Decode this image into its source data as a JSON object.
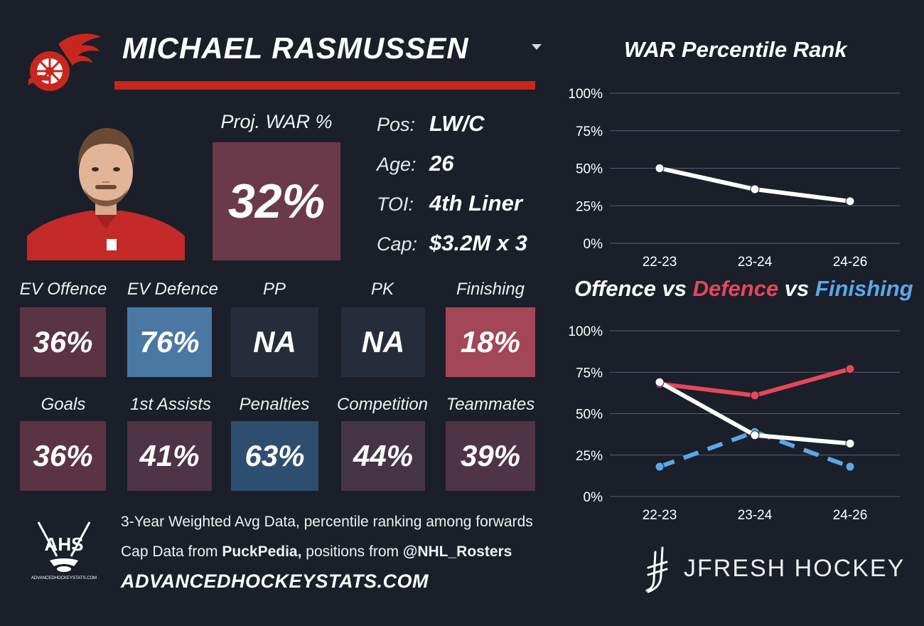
{
  "player": {
    "name": "MICHAEL RASMUSSEN",
    "team_color": "#c8271e"
  },
  "projection": {
    "label": "Proj. WAR %",
    "value": "32%"
  },
  "info": [
    {
      "label": "Pos:",
      "value": "LW/C"
    },
    {
      "label": "Age:",
      "value": "26"
    },
    {
      "label": "TOI:",
      "value": "4th Liner"
    },
    {
      "label": "Cap:",
      "value": "$3.2M x 3"
    }
  ],
  "tiles_row1": [
    {
      "label": "EV Offence",
      "value": "36%",
      "color": "#5b3444"
    },
    {
      "label": "EV Defence",
      "value": "76%",
      "color": "#4a78a3"
    },
    {
      "label": "PP",
      "value": "NA",
      "color": "#262d3a"
    },
    {
      "label": "PK",
      "value": "NA",
      "color": "#262d3a"
    },
    {
      "label": "Finishing",
      "value": "18%",
      "color": "#a24658"
    }
  ],
  "tiles_row2": [
    {
      "label": "Goals",
      "value": "36%",
      "color": "#5b3444"
    },
    {
      "label": "1st Assists",
      "value": "41%",
      "color": "#4e3444"
    },
    {
      "label": "Penalties",
      "value": "63%",
      "color": "#2e4e70"
    },
    {
      "label": "Competition",
      "value": "44%",
      "color": "#443444"
    },
    {
      "label": "Teammates",
      "value": "39%",
      "color": "#4e3444"
    }
  ],
  "footer": {
    "line1": "3-Year Weighted Avg Data, percentile ranking among forwards",
    "line2_prefix": "Cap Data from ",
    "line2_source": "PuckPedia,",
    "line2_middle": " positions from ",
    "line2_handle": "@NHL_Rosters",
    "site": "ADVANCEDHOCKEYSTATS.COM",
    "ahs_logo_text": "AHS",
    "ahs_logo_subtext": "ADVANCEDHOCKEYSTATS.COM",
    "brand": "JFRESH HOCKEY"
  },
  "chart_data": [
    {
      "type": "line",
      "title": "WAR Percentile Rank",
      "categories": [
        "22-23",
        "23-24",
        "24-26"
      ],
      "series": [
        {
          "values": [
            50,
            36,
            28
          ],
          "color": "#ffffff",
          "dashed": false
        }
      ],
      "ylim": [
        0,
        100
      ],
      "yticks": [
        "0%",
        "25%",
        "50%",
        "75%",
        "100%"
      ],
      "grid": true
    },
    {
      "type": "line",
      "title_parts": [
        {
          "text": "Offence",
          "color": "#ffffff"
        },
        {
          "text": " vs ",
          "color": "#ffffff"
        },
        {
          "text": "Defence",
          "color": "#e8465c"
        },
        {
          "text": " vs ",
          "color": "#ffffff"
        },
        {
          "text": "Finishing",
          "color": "#5aa8e8"
        }
      ],
      "categories": [
        "22-23",
        "23-24",
        "24-26"
      ],
      "series": [
        {
          "values": [
            68,
            61,
            77
          ],
          "color": "#e8465c",
          "dashed": false
        },
        {
          "values": [
            18,
            39,
            18
          ],
          "color": "#5aa8e8",
          "dashed": true
        },
        {
          "values": [
            69,
            37,
            32
          ],
          "color": "#ffffff",
          "dashed": false
        }
      ],
      "ylim": [
        0,
        100
      ],
      "yticks": [
        "0%",
        "25%",
        "50%",
        "75%",
        "100%"
      ],
      "grid": true
    }
  ]
}
